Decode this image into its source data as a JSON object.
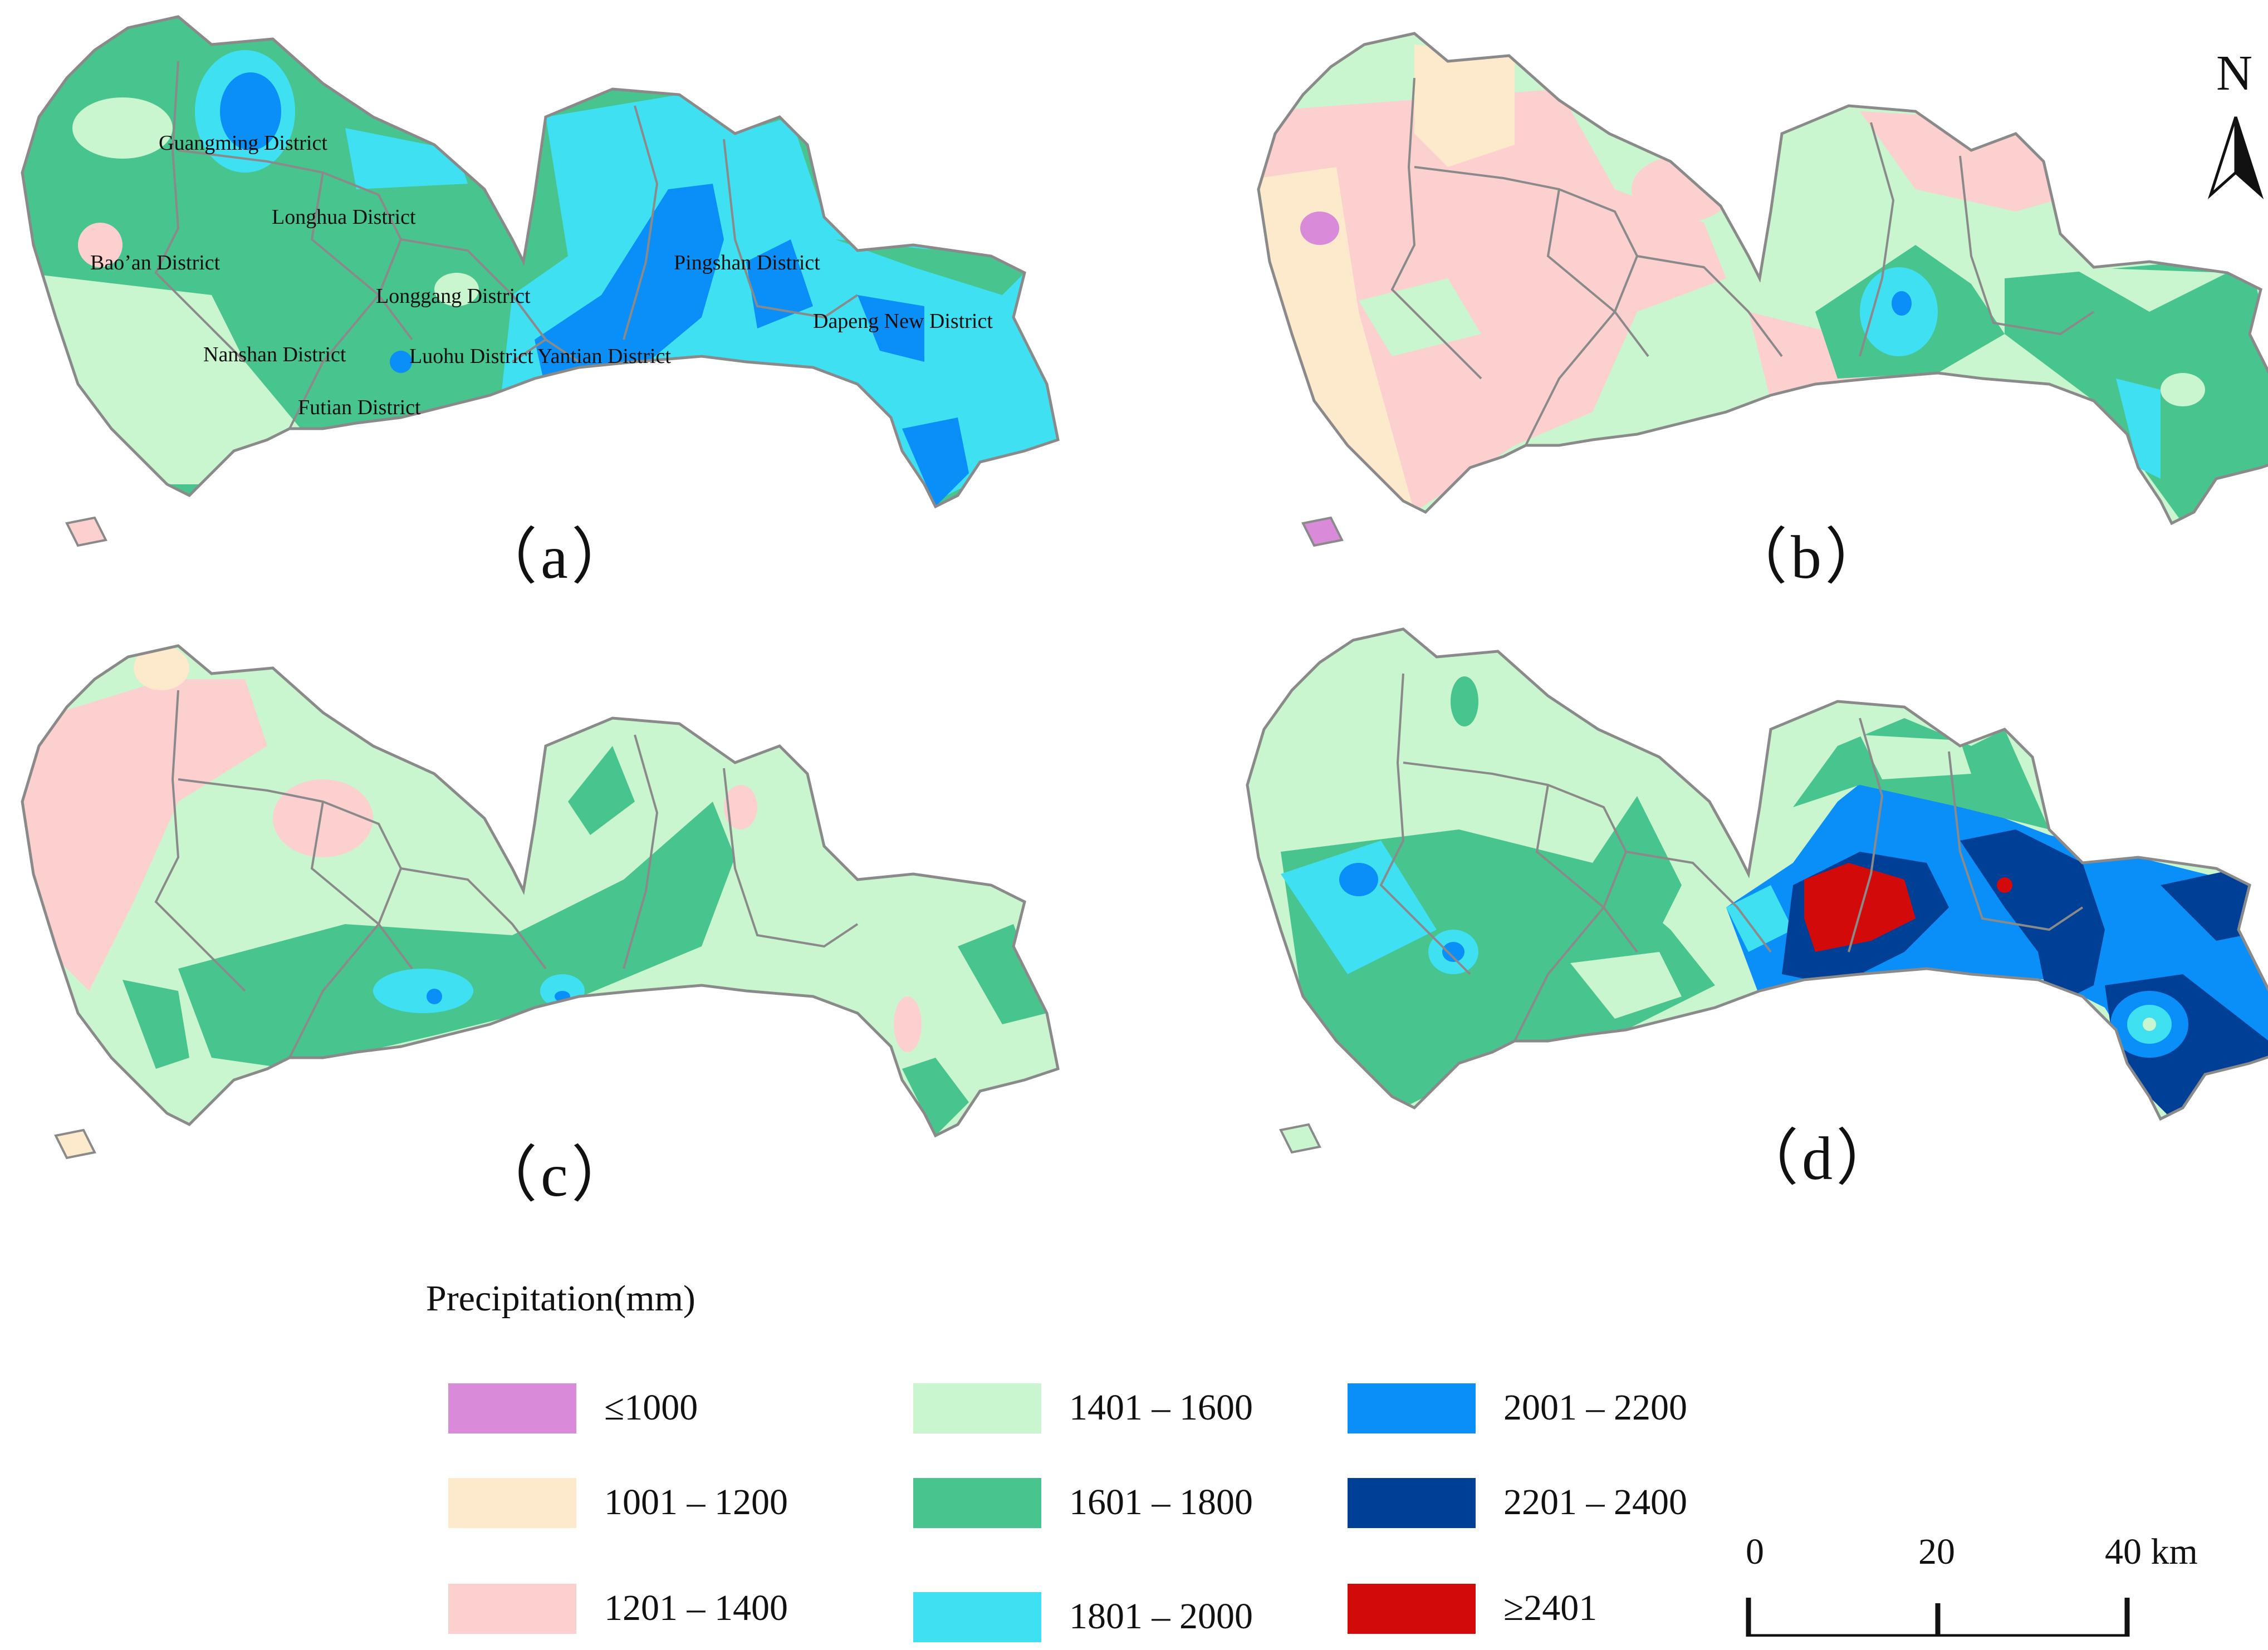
{
  "colors": {
    "le1000": "#d98ad9",
    "c1001_1200": "#fde9cc",
    "c1201_1400": "#fdd0d0",
    "c1401_1600": "#c9f5cf",
    "c1601_1800": "#48c48e",
    "c1801_2000": "#3ee0f2",
    "c2001_2200": "#0a8ef7",
    "c2201_2400": "#003f96",
    "ge2401": "#d20a0a",
    "boundary": "#8a8a8a"
  },
  "panels": [
    {
      "label": "（a）",
      "dominant_classes": [
        "1601 – 1800",
        "1801 – 2000",
        "1401 – 1600",
        "2001 – 2200"
      ]
    },
    {
      "label": "（b）",
      "dominant_classes": [
        "1201 – 1400",
        "1401 – 1600",
        "1601 – 1800",
        "1001 – 1200"
      ]
    },
    {
      "label": "（c）",
      "dominant_classes": [
        "1401 – 1600",
        "1601 – 1800",
        "1201 – 1400"
      ]
    },
    {
      "label": "（d）",
      "dominant_classes": [
        "1401 – 1600",
        "1601 – 1800",
        "2001 – 2200",
        "2201 – 2400",
        "≥2401"
      ]
    }
  ],
  "districts": [
    "Guangming District",
    "Longhua District",
    "Bao’an District",
    "Longgang District",
    "Pingshan District",
    "Dapeng New District",
    "Nanshan District",
    "Luohu District",
    "Yantian District",
    "Futian District"
  ],
  "north": "N",
  "legend": {
    "title": "Precipitation(mm)",
    "items": [
      {
        "label": "≤1000",
        "color": "#d98ad9"
      },
      {
        "label": "1001 – 1200",
        "color": "#fde9cc"
      },
      {
        "label": "1201 – 1400",
        "color": "#fdd0d0"
      },
      {
        "label": "1401 – 1600",
        "color": "#c9f5cf"
      },
      {
        "label": "1601 – 1800",
        "color": "#48c48e"
      },
      {
        "label": "1801 – 2000",
        "color": "#3ee0f2"
      },
      {
        "label": "2001 – 2200",
        "color": "#0a8ef7"
      },
      {
        "label": "2201 – 2400",
        "color": "#003f96"
      },
      {
        "label": "≥2401",
        "color": "#d20a0a"
      }
    ]
  },
  "scale": {
    "ticks": [
      "0",
      "20",
      "40 km"
    ]
  }
}
